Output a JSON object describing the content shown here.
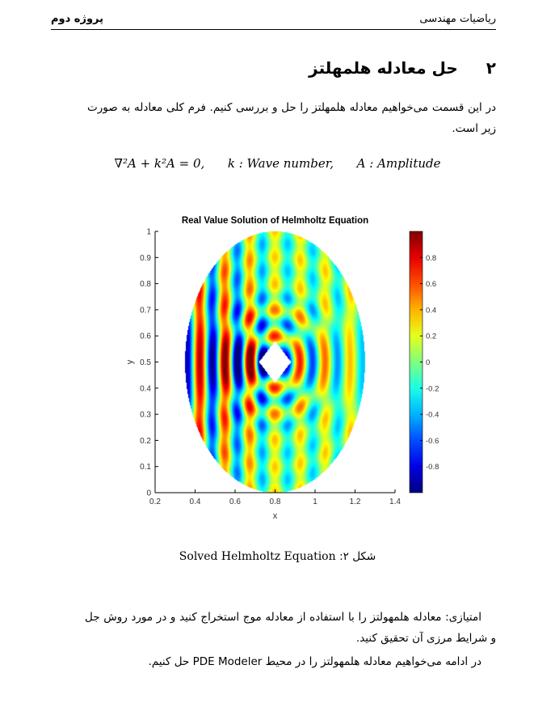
{
  "header": {
    "left": "پروژه دوم",
    "right": "ریاضیات مهندسی"
  },
  "section": {
    "number": "۲",
    "title": "حل معادله هلمهلتز"
  },
  "intro": "در این قسمت می‌خواهیم معادله هلمهلتز را حل و بررسی کنیم. فرم کلی معادله به صورت زیر است.",
  "equation": {
    "lhs": "∇²A + k²A = 0,",
    "k_def": "k : Wave number,",
    "a_def": "A : Amplitude"
  },
  "figure": {
    "chart_data": {
      "type": "heatmap",
      "title": "Real Value Solution of Helmholtz Equation",
      "xlabel": "x",
      "ylabel": "y",
      "xlim": [
        0.2,
        1.4
      ],
      "ylim": [
        0,
        1
      ],
      "xticks": [
        "0.2",
        "0.4",
        "0.6",
        "0.8",
        "1",
        "1.2",
        "1.4"
      ],
      "yticks": [
        "0",
        "0.1",
        "0.2",
        "0.3",
        "0.4",
        "0.5",
        "0.6",
        "0.7",
        "0.8",
        "0.9",
        "1"
      ],
      "colorbar_ticks": [
        "0.8",
        "0.6",
        "0.4",
        "0.2",
        "0",
        "-0.2",
        "-0.4",
        "-0.6",
        "-0.8"
      ],
      "colorbar_range": [
        -1,
        1
      ],
      "domain": "ellipse",
      "domain_center": [
        0.8,
        0.5
      ],
      "domain_semi_axes": [
        0.45,
        0.5
      ],
      "obstacle": "square",
      "obstacle_center": [
        0.8,
        0.5
      ],
      "obstacle_half_diagonal": 0.08,
      "legend": "colorbar right"
    },
    "caption_label": "شکل ۲:",
    "caption_text": "Solved Helmholtz Equation"
  },
  "extra": {
    "line1": "امتیازی: معادله هلمهولتز را با استفاده از معادله موج استخراج کنید و در مورد روش جل و شرایط مرزی آن تحقیق کنید.",
    "line2": "در ادامه می‌خواهیم معادله هلمهولتز را در محیط PDE Modeler حل کنیم."
  }
}
